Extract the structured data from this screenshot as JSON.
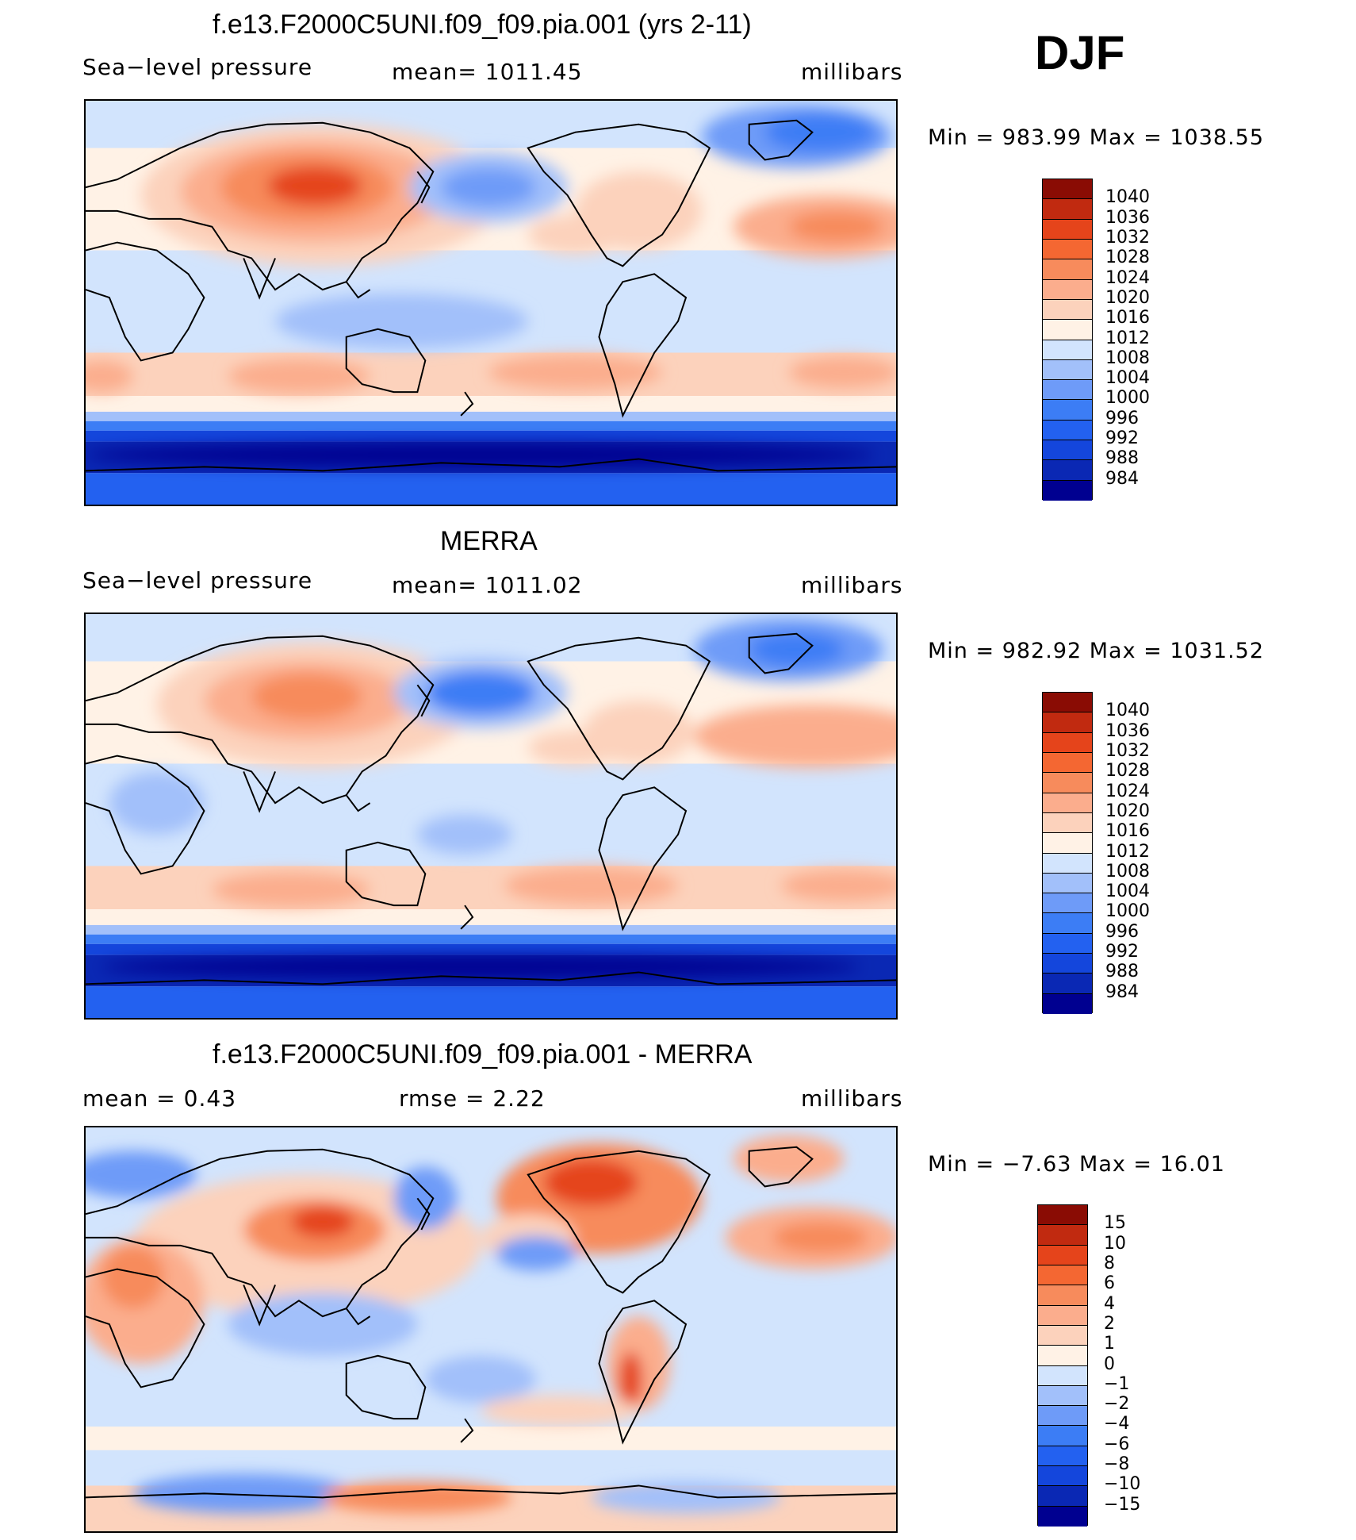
{
  "season": "DJF",
  "colors": {
    "abs_scale": [
      "#000090",
      "#0a28b4",
      "#1446dc",
      "#2361f0",
      "#3c7df5",
      "#6e9bf8",
      "#a2c0fa",
      "#d2e4fd",
      "#fff2e6",
      "#fcd2bc",
      "#fbad8d",
      "#f78b5c",
      "#f46732",
      "#e5441b",
      "#c12a10",
      "#8a0c04"
    ],
    "diff_scale": [
      "#000090",
      "#0a28b4",
      "#1446dc",
      "#2361f0",
      "#3c7df5",
      "#6e9bf8",
      "#a2c0fa",
      "#d2e4fd",
      "#fff2e6",
      "#fcd2bc",
      "#fbad8d",
      "#f78b5c",
      "#f46732",
      "#e5441b",
      "#c12a10",
      "#8a0c04"
    ]
  },
  "panels": [
    {
      "title": "f.e13.F2000C5UNI.f09_f09.pia.001 (yrs 2-11)",
      "left_label": "Sea−level pressure",
      "center_label": "mean=  1011.45",
      "right_label": "millibars",
      "minmax": "Min  =  983.99  Max  =  1038.55",
      "colorbar_labels": [
        "1040",
        "1036",
        "1032",
        "1028",
        "1024",
        "1020",
        "1016",
        "1012",
        "1008",
        "1004",
        "1000",
        "996",
        "992",
        "988",
        "984"
      ],
      "kind": "model"
    },
    {
      "title": "MERRA",
      "left_label": "Sea−level pressure",
      "center_label": "mean=  1011.02",
      "right_label": "millibars",
      "minmax": "Min  =  982.92  Max  =  1031.52",
      "colorbar_labels": [
        "1040",
        "1036",
        "1032",
        "1028",
        "1024",
        "1020",
        "1016",
        "1012",
        "1008",
        "1004",
        "1000",
        "996",
        "992",
        "988",
        "984"
      ],
      "kind": "obs"
    },
    {
      "title": "f.e13.F2000C5UNI.f09_f09.pia.001 - MERRA",
      "left_label": "mean  =      0.43",
      "center_label": "rmse  =      2.22",
      "right_label": "millibars",
      "minmax": "Min  =    −7.63  Max  =    16.01",
      "colorbar_labels": [
        "15",
        "10",
        "8",
        "6",
        "4",
        "2",
        "1",
        "0",
        "−1",
        "−2",
        "−4",
        "−6",
        "−8",
        "−10",
        "−15"
      ],
      "kind": "diff"
    }
  ]
}
